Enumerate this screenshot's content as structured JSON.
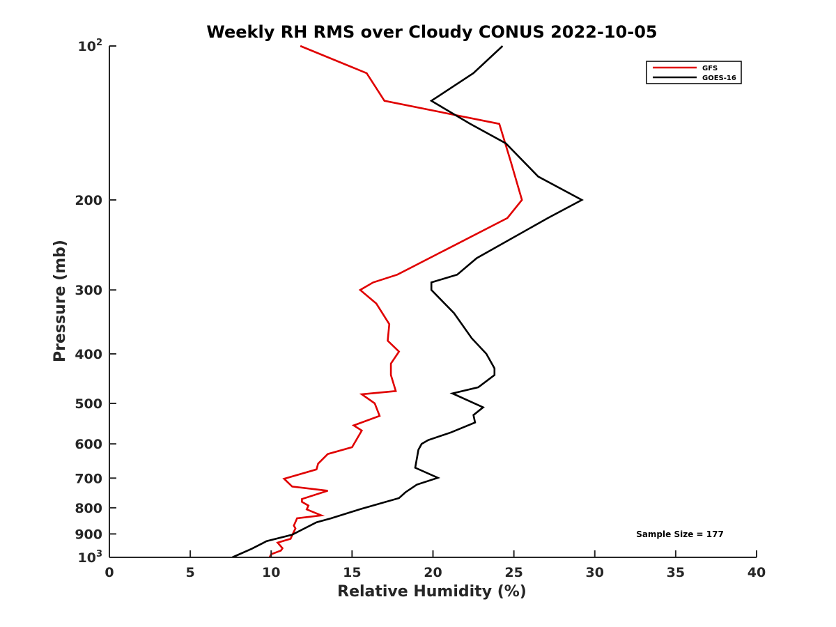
{
  "chart_data": {
    "type": "line",
    "title": "Weekly RH RMS over Cloudy CONUS 2022-10-05",
    "xlabel": "Relative Humidity (%)",
    "ylabel": "Pressure (mb)",
    "xlim": [
      0,
      40
    ],
    "ylim": [
      100,
      1000
    ],
    "yscale": "log",
    "y_inverted": true,
    "x_ticks": [
      0,
      5,
      10,
      15,
      20,
      25,
      30,
      35,
      40
    ],
    "x_tick_labels": [
      "0",
      "5",
      "10",
      "15",
      "20",
      "25",
      "30",
      "35",
      "40"
    ],
    "y_ticks": [
      100,
      200,
      300,
      400,
      500,
      600,
      700,
      800,
      900,
      1000
    ],
    "y_tick_labels": [
      {
        "base": "10",
        "exp": "2"
      },
      {
        "base": "200"
      },
      {
        "base": "300"
      },
      {
        "base": "400"
      },
      {
        "base": "500"
      },
      {
        "base": "600"
      },
      {
        "base": "700"
      },
      {
        "base": "800"
      },
      {
        "base": "900"
      },
      {
        "base": "10",
        "exp": "3"
      }
    ],
    "legend_position": "top-right",
    "annotation": "Sample Size = 177",
    "series": [
      {
        "name": "GFS",
        "color": "#e00000",
        "x": [
          11.8,
          15.9,
          17.0,
          24.1,
          24.8,
          25.5,
          24.6,
          17.8,
          16.3,
          15.5,
          16.5,
          17.3,
          17.2,
          17.9,
          17.4,
          17.4,
          17.7,
          15.6,
          16.4,
          16.7,
          15.1,
          15.6,
          15.0,
          13.5,
          12.9,
          12.8,
          10.8,
          11.3,
          13.5,
          11.9,
          11.9,
          12.3,
          12.2,
          13.1,
          11.6,
          11.4,
          11.5,
          11.3,
          11.2,
          10.4,
          10.7,
          10.6,
          10.0,
          9.9
        ],
        "y": [
          100,
          113,
          128,
          142,
          168,
          200,
          217,
          280,
          290,
          300,
          319,
          350,
          377,
          396,
          418,
          440,
          473,
          480,
          500,
          529,
          552,
          565,
          609,
          628,
          656,
          673,
          702,
          727,
          741,
          769,
          779,
          792,
          806,
          828,
          839,
          867,
          878,
          905,
          920,
          936,
          960,
          970,
          986,
          1000
        ]
      },
      {
        "name": "GOES-16",
        "color": "#000000",
        "x": [
          24.3,
          22.5,
          19.9,
          22.3,
          24.5,
          26.5,
          29.2,
          27.1,
          22.7,
          21.5,
          19.9,
          19.9,
          21.3,
          22.4,
          23.3,
          23.8,
          23.8,
          22.8,
          21.2,
          23.1,
          22.5,
          22.6,
          21.1,
          19.7,
          19.3,
          19.1,
          18.9,
          20.3,
          19.0,
          18.3,
          17.9,
          15.5,
          13.7,
          12.8,
          11.3,
          9.7,
          9.6,
          8.8,
          7.6
        ],
        "y": [
          100,
          113,
          128,
          142,
          155,
          180,
          200,
          217,
          260,
          280,
          290,
          300,
          333,
          373,
          400,
          427,
          440,
          465,
          478,
          509,
          527,
          545,
          570,
          590,
          600,
          616,
          668,
          699,
          721,
          746,
          766,
          805,
          839,
          854,
          903,
          930,
          934,
          962,
          1000
        ]
      }
    ]
  }
}
